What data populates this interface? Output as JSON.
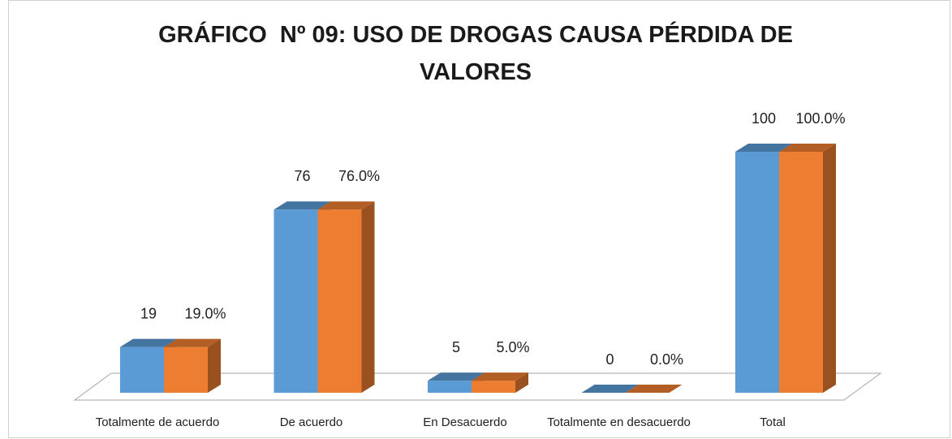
{
  "chart_data": {
    "type": "bar3d",
    "title": "GRÁFICO  Nº 09: USO DE DROGAS CAUSA PÉRDIDA DE VALORES",
    "categories": [
      "Totalmente de acuerdo",
      "De acuerdo",
      "En Desacuerdo",
      "Totalmente en desacuerdo",
      "Total"
    ],
    "series": [
      {
        "color": "#5b9bd5",
        "values": [
          19,
          76,
          5,
          0,
          100
        ]
      },
      {
        "color": "#ed7d31",
        "values": [
          19.0,
          76.0,
          5.0,
          0.0,
          100.0
        ],
        "value_labels": [
          "19.0%",
          "76.0%",
          "5.0%",
          "0.0%",
          "100.0%"
        ]
      }
    ]
  }
}
